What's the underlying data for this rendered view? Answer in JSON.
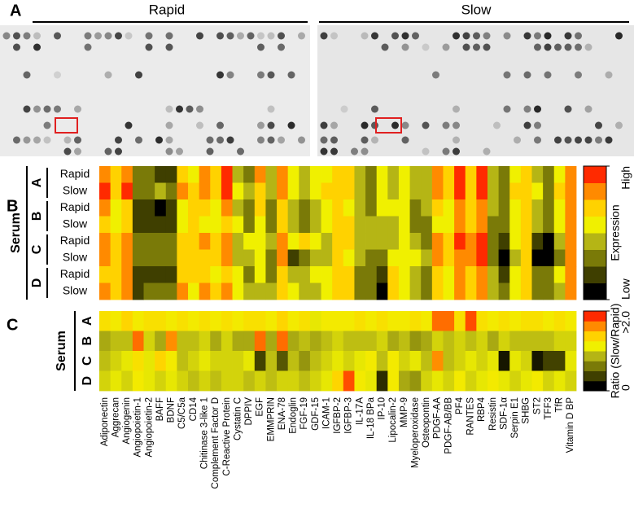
{
  "panel_labels": [
    "A",
    "B",
    "C"
  ],
  "blot": {
    "titles": [
      "Rapid",
      "Slow"
    ]
  },
  "chart_data": [
    {
      "type": "heatmap",
      "ylabel": "Serum",
      "groups": [
        "A",
        "B",
        "C",
        "D"
      ],
      "rows": [
        "Rapid",
        "Slow",
        "Rapid",
        "Slow",
        "Rapid",
        "Slow",
        "Rapid",
        "Slow"
      ],
      "values": [
        [
          6,
          5,
          6,
          2,
          2,
          1,
          1,
          5,
          4,
          6,
          5,
          7,
          3,
          2,
          6,
          3,
          6,
          4,
          3,
          4,
          4,
          5,
          5,
          3,
          2,
          4,
          3,
          4,
          3,
          3,
          6,
          5,
          7,
          5,
          7,
          3,
          2,
          4,
          5,
          3,
          2,
          4,
          6
        ],
        [
          7,
          5,
          7,
          2,
          2,
          3,
          2,
          6,
          5,
          6,
          5,
          7,
          4,
          3,
          5,
          3,
          6,
          4,
          3,
          4,
          5,
          5,
          5,
          3,
          2,
          4,
          3,
          4,
          3,
          3,
          6,
          5,
          7,
          5,
          7,
          3,
          2,
          5,
          5,
          4,
          2,
          5,
          6
        ],
        [
          6,
          4,
          5,
          1,
          1,
          0,
          1,
          4,
          5,
          5,
          4,
          6,
          3,
          2,
          5,
          2,
          5,
          3,
          2,
          3,
          4,
          5,
          4,
          3,
          2,
          4,
          4,
          4,
          2,
          3,
          5,
          4,
          6,
          5,
          6,
          3,
          2,
          4,
          5,
          3,
          2,
          4,
          6
        ],
        [
          5,
          4,
          5,
          1,
          1,
          1,
          1,
          4,
          5,
          4,
          4,
          5,
          4,
          2,
          4,
          2,
          5,
          3,
          2,
          3,
          4,
          5,
          5,
          3,
          3,
          3,
          3,
          4,
          2,
          2,
          4,
          4,
          6,
          5,
          6,
          2,
          2,
          4,
          5,
          3,
          2,
          4,
          6
        ],
        [
          6,
          5,
          6,
          2,
          2,
          2,
          2,
          5,
          5,
          6,
          5,
          6,
          3,
          4,
          4,
          3,
          6,
          4,
          5,
          4,
          3,
          5,
          5,
          3,
          3,
          3,
          3,
          4,
          3,
          2,
          6,
          5,
          7,
          6,
          7,
          2,
          1,
          4,
          5,
          1,
          0,
          3,
          6
        ],
        [
          6,
          5,
          6,
          2,
          2,
          2,
          2,
          5,
          5,
          5,
          5,
          6,
          3,
          3,
          4,
          2,
          6,
          1,
          2,
          3,
          3,
          5,
          4,
          3,
          2,
          2,
          4,
          4,
          4,
          3,
          6,
          5,
          6,
          6,
          7,
          2,
          0,
          3,
          5,
          0,
          0,
          2,
          6
        ],
        [
          5,
          5,
          6,
          1,
          1,
          1,
          1,
          5,
          5,
          5,
          4,
          5,
          4,
          2,
          4,
          2,
          5,
          3,
          3,
          4,
          4,
          5,
          5,
          2,
          2,
          1,
          5,
          4,
          3,
          2,
          5,
          4,
          6,
          5,
          6,
          3,
          1,
          4,
          5,
          2,
          2,
          4,
          6
        ],
        [
          6,
          5,
          6,
          1,
          2,
          2,
          2,
          6,
          4,
          6,
          5,
          6,
          4,
          3,
          3,
          3,
          5,
          4,
          3,
          3,
          4,
          5,
          5,
          2,
          2,
          0,
          5,
          4,
          3,
          2,
          5,
          4,
          6,
          5,
          6,
          3,
          2,
          4,
          5,
          2,
          2,
          3,
          6
        ]
      ],
      "zlim": [
        0,
        7
      ],
      "zticks": [
        {
          "value": 0,
          "label": "Low"
        },
        {
          "value": 7,
          "label": "High"
        }
      ],
      "colorbar_label": "Expression",
      "colors": [
        "#000000",
        "#3f3f00",
        "#7a7a08",
        "#b5b515",
        "#f0f000",
        "#ffd200",
        "#ff8a00",
        "#ff2a00"
      ]
    },
    {
      "type": "heatmap",
      "ylabel": "Serum",
      "rows": [
        "A",
        "B",
        "C",
        "D"
      ],
      "categories": [
        "Adiponectin",
        "Aggrecan",
        "Angiogenin",
        "Angiopoietin-1",
        "Angiopoietin-2",
        "BAFF",
        "BDNF",
        "C5/C5a",
        "CD14",
        "Chitinase 3-like 1",
        "Complement Factor D",
        "C-Reactive Protein",
        "Cystatin C",
        "DPPIV",
        "EGF",
        "EMMPRIN",
        "ENA-78",
        "Endoglin",
        "FGF-19",
        "GDF-15",
        "ICAM-1",
        "IGFBP-2",
        "IGFBP-3",
        "IL-17A",
        "IL-18 BPa",
        "IP-10",
        "Lipocalin-2",
        "MMP-9",
        "Myeloperoxidase",
        "Osteopontin",
        "PDGF-AA",
        "PDGF-AB/BB",
        "PF4",
        "RANTES",
        "RBP4",
        "Resistin",
        "SDF-1α",
        "Serpin E1",
        "SHBG",
        "ST2",
        "TFF3",
        "TfR",
        "Vitamin D BP"
      ],
      "values": [
        [
          1.3,
          1.2,
          1.4,
          1.2,
          1.3,
          1.3,
          1.2,
          1.3,
          1.2,
          1.3,
          1.2,
          1.3,
          1.2,
          1.3,
          1.3,
          1.2,
          1.4,
          1.2,
          1.3,
          1.1,
          1.2,
          1.2,
          1.2,
          1.3,
          1.2,
          1.3,
          1.2,
          1.2,
          1.3,
          1.2,
          1.8,
          1.8,
          1.3,
          1.9,
          1.3,
          1.2,
          1.3,
          1.2,
          1.3,
          1.3,
          1.2,
          1.3,
          1.2
        ],
        [
          0.8,
          0.9,
          0.9,
          1.8,
          1.0,
          0.8,
          1.7,
          0.9,
          0.9,
          1.0,
          0.8,
          1.0,
          0.8,
          0.8,
          1.8,
          0.8,
          1.8,
          0.8,
          0.9,
          0.8,
          0.9,
          1.0,
          0.9,
          0.9,
          0.9,
          1.0,
          0.8,
          0.9,
          0.7,
          0.8,
          1.0,
          0.9,
          1.0,
          0.9,
          1.0,
          0.8,
          1.0,
          0.9,
          0.9,
          0.9,
          0.9,
          1.0,
          1.0
        ],
        [
          0.9,
          1.0,
          1.1,
          1.3,
          1.1,
          1.4,
          1.2,
          0.9,
          1.0,
          1.1,
          1.0,
          1.0,
          1.0,
          1.1,
          0.3,
          0.9,
          0.4,
          0.9,
          0.7,
          0.9,
          1.0,
          1.1,
          1.0,
          1.1,
          1.2,
          0.9,
          1.2,
          1.0,
          1.1,
          0.9,
          1.7,
          0.9,
          1.0,
          1.1,
          1.0,
          1.1,
          0.1,
          1.1,
          1.0,
          0.1,
          0.3,
          0.3,
          1.1
        ],
        [
          1.0,
          1.1,
          1.0,
          1.2,
          1.1,
          1.0,
          1.1,
          1.0,
          0.9,
          1.0,
          0.9,
          1.0,
          1.0,
          0.9,
          1.0,
          0.9,
          1.0,
          1.0,
          0.9,
          1.0,
          1.1,
          1.4,
          1.9,
          1.2,
          1.1,
          0.2,
          1.2,
          0.8,
          0.7,
          1.0,
          1.1,
          1.0,
          1.2,
          1.0,
          1.1,
          1.2,
          1.1,
          1.0,
          1.1,
          1.2,
          1.0,
          1.1,
          1.0
        ]
      ],
      "zlim": [
        0,
        2
      ],
      "zticks": [
        0,
        {
          "value": 2,
          "label": ">2.0"
        }
      ],
      "colorbar_label": "Ratio (Slow/Rapid)",
      "colors": [
        "#000000",
        "#3f3f00",
        "#7a7a08",
        "#b5b515",
        "#f0f000",
        "#ffd200",
        "#ff8a00",
        "#ff2a00"
      ]
    }
  ]
}
